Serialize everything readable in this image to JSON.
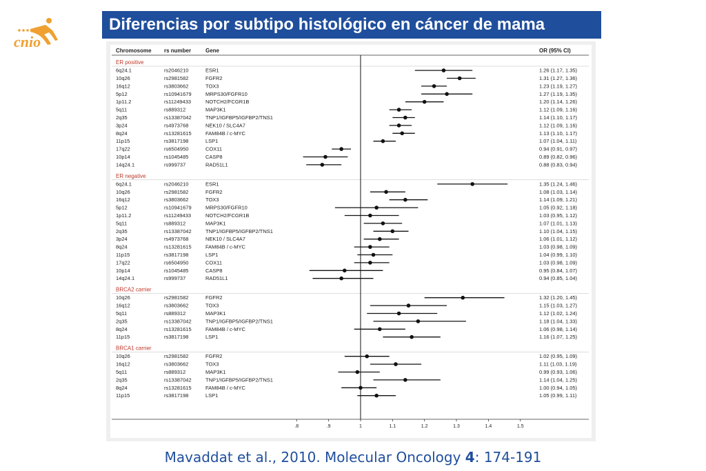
{
  "title": "Diferencias por subtipo histológico en cáncer de mama",
  "logo": {
    "text": "cnio",
    "icon": "runner-icon",
    "color": "#f0a030"
  },
  "citation": {
    "authors": "Mavaddat et al., 2010. Molecular Oncology ",
    "volume": "4",
    "pages": ": 174-191"
  },
  "colors": {
    "title_bg": "#1f4e9c",
    "group_label": "#c0392b"
  },
  "chart_data": {
    "type": "forest",
    "columns": [
      "Chromosome",
      "rs number",
      "Gene",
      "OR (95% CI)"
    ],
    "x_ticks": [
      ".8",
      ".9",
      "1",
      "1.1",
      "1.2",
      "1.3",
      "1.4",
      "1.5"
    ],
    "x_tick_values": [
      0.8,
      0.9,
      1.0,
      1.1,
      1.2,
      1.3,
      1.4,
      1.5
    ],
    "xlim": [
      0.78,
      1.52
    ],
    "reference_line": 1.0,
    "groups": [
      {
        "name": "ER positive",
        "rows": [
          {
            "chrom": "6q24.1",
            "rs": "rs2046210",
            "gene": "ESR1",
            "or": 1.26,
            "lo": 1.17,
            "hi": 1.35,
            "label": "1.26 (1.17, 1.35)"
          },
          {
            "chrom": "10q26",
            "rs": "rs2981582",
            "gene": "FGFR2",
            "or": 1.31,
            "lo": 1.27,
            "hi": 1.36,
            "label": "1.31 (1.27, 1.36)"
          },
          {
            "chrom": "16q12",
            "rs": "rs3803662",
            "gene": "TOX3",
            "or": 1.23,
            "lo": 1.19,
            "hi": 1.27,
            "label": "1.23 (1.19, 1.27)"
          },
          {
            "chrom": "5p12",
            "rs": "rs10941679",
            "gene": "MRPS30/FGFR10",
            "or": 1.27,
            "lo": 1.19,
            "hi": 1.35,
            "label": "1.27 (1.19, 1.35)"
          },
          {
            "chrom": "1p11.2",
            "rs": "rs11249433",
            "gene": "NOTCH2/FCGR1B",
            "or": 1.2,
            "lo": 1.14,
            "hi": 1.26,
            "label": "1.20 (1.14, 1.26)"
          },
          {
            "chrom": "5q11",
            "rs": "rs889312",
            "gene": "MAP3K1",
            "or": 1.12,
            "lo": 1.09,
            "hi": 1.16,
            "label": "1.12 (1.09, 1.16)"
          },
          {
            "chrom": "2q35",
            "rs": "rs13387042",
            "gene": "TNP1/IGFBP5/IGFBP2/TNS1",
            "or": 1.14,
            "lo": 1.1,
            "hi": 1.17,
            "label": "1.14 (1.10, 1.17)"
          },
          {
            "chrom": "3p24",
            "rs": "rs4973768",
            "gene": "NEK10 / SLC4A7",
            "or": 1.12,
            "lo": 1.09,
            "hi": 1.16,
            "label": "1.12 (1.09, 1.16)"
          },
          {
            "chrom": "8q24",
            "rs": "rs13281615",
            "gene": "FAM84B / c-MYC",
            "or": 1.13,
            "lo": 1.1,
            "hi": 1.17,
            "label": "1.13 (1.10, 1.17)"
          },
          {
            "chrom": "11p15",
            "rs": "rs3817198",
            "gene": "LSP1",
            "or": 1.07,
            "lo": 1.04,
            "hi": 1.11,
            "label": "1.07 (1.04, 1.11)"
          },
          {
            "chrom": "17q22",
            "rs": "rs6504950",
            "gene": "COX11",
            "or": 0.94,
            "lo": 0.91,
            "hi": 0.97,
            "label": "0.94 (0.91, 0.97)"
          },
          {
            "chrom": "10p14",
            "rs": "rs1045485",
            "gene": "CASP8",
            "or": 0.89,
            "lo": 0.82,
            "hi": 0.96,
            "label": "0.89 (0.82, 0.96)"
          },
          {
            "chrom": "14q24.1",
            "rs": "rs999737",
            "gene": "RAD51L1",
            "or": 0.88,
            "lo": 0.83,
            "hi": 0.94,
            "label": "0.88 (0.83, 0.94)"
          }
        ]
      },
      {
        "name": "ER negative",
        "rows": [
          {
            "chrom": "6q24.1",
            "rs": "rs2046210",
            "gene": "ESR1",
            "or": 1.35,
            "lo": 1.24,
            "hi": 1.46,
            "label": "1.35 (1.24, 1.46)"
          },
          {
            "chrom": "10q26",
            "rs": "rs2981582",
            "gene": "FGFR2",
            "or": 1.08,
            "lo": 1.03,
            "hi": 1.14,
            "label": "1.08 (1.03, 1.14)"
          },
          {
            "chrom": "16q12",
            "rs": "rs3803662",
            "gene": "TOX3",
            "or": 1.14,
            "lo": 1.09,
            "hi": 1.21,
            "label": "1.14 (1.09, 1.21)"
          },
          {
            "chrom": "5p12",
            "rs": "rs10941679",
            "gene": "MRPS30/FGFR10",
            "or": 1.05,
            "lo": 0.92,
            "hi": 1.18,
            "label": "1.05 (0.92, 1.18)"
          },
          {
            "chrom": "1p11.2",
            "rs": "rs11249433",
            "gene": "NOTCH2/FCGR1B",
            "or": 1.03,
            "lo": 0.95,
            "hi": 1.12,
            "label": "1.03 (0.95, 1.12)"
          },
          {
            "chrom": "5q11",
            "rs": "rs889312",
            "gene": "MAP3K1",
            "or": 1.07,
            "lo": 1.01,
            "hi": 1.13,
            "label": "1.07 (1.01, 1.13)"
          },
          {
            "chrom": "2q35",
            "rs": "rs13387042",
            "gene": "TNP1/IGFBP5/IGFBP2/TNS1",
            "or": 1.1,
            "lo": 1.04,
            "hi": 1.15,
            "label": "1.10 (1.04, 1.15)"
          },
          {
            "chrom": "3p24",
            "rs": "rs4973768",
            "gene": "NEK10 / SLC4A7",
            "or": 1.06,
            "lo": 1.01,
            "hi": 1.12,
            "label": "1.06 (1.01, 1.12)"
          },
          {
            "chrom": "8q24",
            "rs": "rs13281615",
            "gene": "FAM84B / c-MYC",
            "or": 1.03,
            "lo": 0.98,
            "hi": 1.09,
            "label": "1.03 (0.98, 1.09)"
          },
          {
            "chrom": "11p15",
            "rs": "rs3817198",
            "gene": "LSP1",
            "or": 1.04,
            "lo": 0.99,
            "hi": 1.1,
            "label": "1.04 (0.99, 1.10)"
          },
          {
            "chrom": "17q22",
            "rs": "rs6504950",
            "gene": "COX11",
            "or": 1.03,
            "lo": 0.98,
            "hi": 1.09,
            "label": "1.03 (0.98, 1.09)"
          },
          {
            "chrom": "10p14",
            "rs": "rs1045485",
            "gene": "CASP8",
            "or": 0.95,
            "lo": 0.84,
            "hi": 1.07,
            "label": "0.95 (0.84, 1.07)"
          },
          {
            "chrom": "14q24.1",
            "rs": "rs999737",
            "gene": "RAD51L1",
            "or": 0.94,
            "lo": 0.85,
            "hi": 1.04,
            "label": "0.94 (0.85, 1.04)"
          }
        ]
      },
      {
        "name": "BRCA2 carrier",
        "rows": [
          {
            "chrom": "10q26",
            "rs": "rs2981582",
            "gene": "FGFR2",
            "or": 1.32,
            "lo": 1.2,
            "hi": 1.45,
            "label": "1.32 (1.20, 1.45)"
          },
          {
            "chrom": "16q12",
            "rs": "rs3803662",
            "gene": "TOX3",
            "or": 1.15,
            "lo": 1.03,
            "hi": 1.27,
            "label": "1.15 (1.03, 1.27)"
          },
          {
            "chrom": "5q11",
            "rs": "rs889312",
            "gene": "MAP3K1",
            "or": 1.12,
            "lo": 1.02,
            "hi": 1.24,
            "label": "1.12 (1.02, 1.24)"
          },
          {
            "chrom": "2q35",
            "rs": "rs13387042",
            "gene": "TNP1/IGFBP5/IGFBP2/TNS1",
            "or": 1.18,
            "lo": 1.04,
            "hi": 1.33,
            "label": "1.18 (1.04, 1.33)"
          },
          {
            "chrom": "8q24",
            "rs": "rs13281615",
            "gene": "FAM84B / c-MYC",
            "or": 1.06,
            "lo": 0.98,
            "hi": 1.14,
            "label": "1.06 (0.98, 1.14)"
          },
          {
            "chrom": "11p15",
            "rs": "rs3817198",
            "gene": "LSP1",
            "or": 1.16,
            "lo": 1.07,
            "hi": 1.25,
            "label": "1.16 (1.07, 1.25)"
          }
        ]
      },
      {
        "name": "BRCA1 carrier",
        "rows": [
          {
            "chrom": "10q26",
            "rs": "rs2981582",
            "gene": "FGFR2",
            "or": 1.02,
            "lo": 0.95,
            "hi": 1.09,
            "label": "1.02 (0.95, 1.09)"
          },
          {
            "chrom": "16q12",
            "rs": "rs3803662",
            "gene": "TOX3",
            "or": 1.11,
            "lo": 1.03,
            "hi": 1.19,
            "label": "1.11 (1.03, 1.19)"
          },
          {
            "chrom": "5q11",
            "rs": "rs889312",
            "gene": "MAP3K1",
            "or": 0.99,
            "lo": 0.93,
            "hi": 1.06,
            "label": "0.99 (0.93, 1.06)"
          },
          {
            "chrom": "2q35",
            "rs": "rs13387042",
            "gene": "TNP1/IGFBP5/IGFBP2/TNS1",
            "or": 1.14,
            "lo": 1.04,
            "hi": 1.25,
            "label": "1.14 (1.04, 1.25)"
          },
          {
            "chrom": "8q24",
            "rs": "rs13281615",
            "gene": "FAM84B / c-MYC",
            "or": 1.0,
            "lo": 0.94,
            "hi": 1.05,
            "label": "1.00 (0.94, 1.05)"
          },
          {
            "chrom": "11p15",
            "rs": "rs3817198",
            "gene": "LSP1",
            "or": 1.05,
            "lo": 0.99,
            "hi": 1.11,
            "label": "1.05 (0.99, 1.11)"
          }
        ]
      }
    ]
  }
}
